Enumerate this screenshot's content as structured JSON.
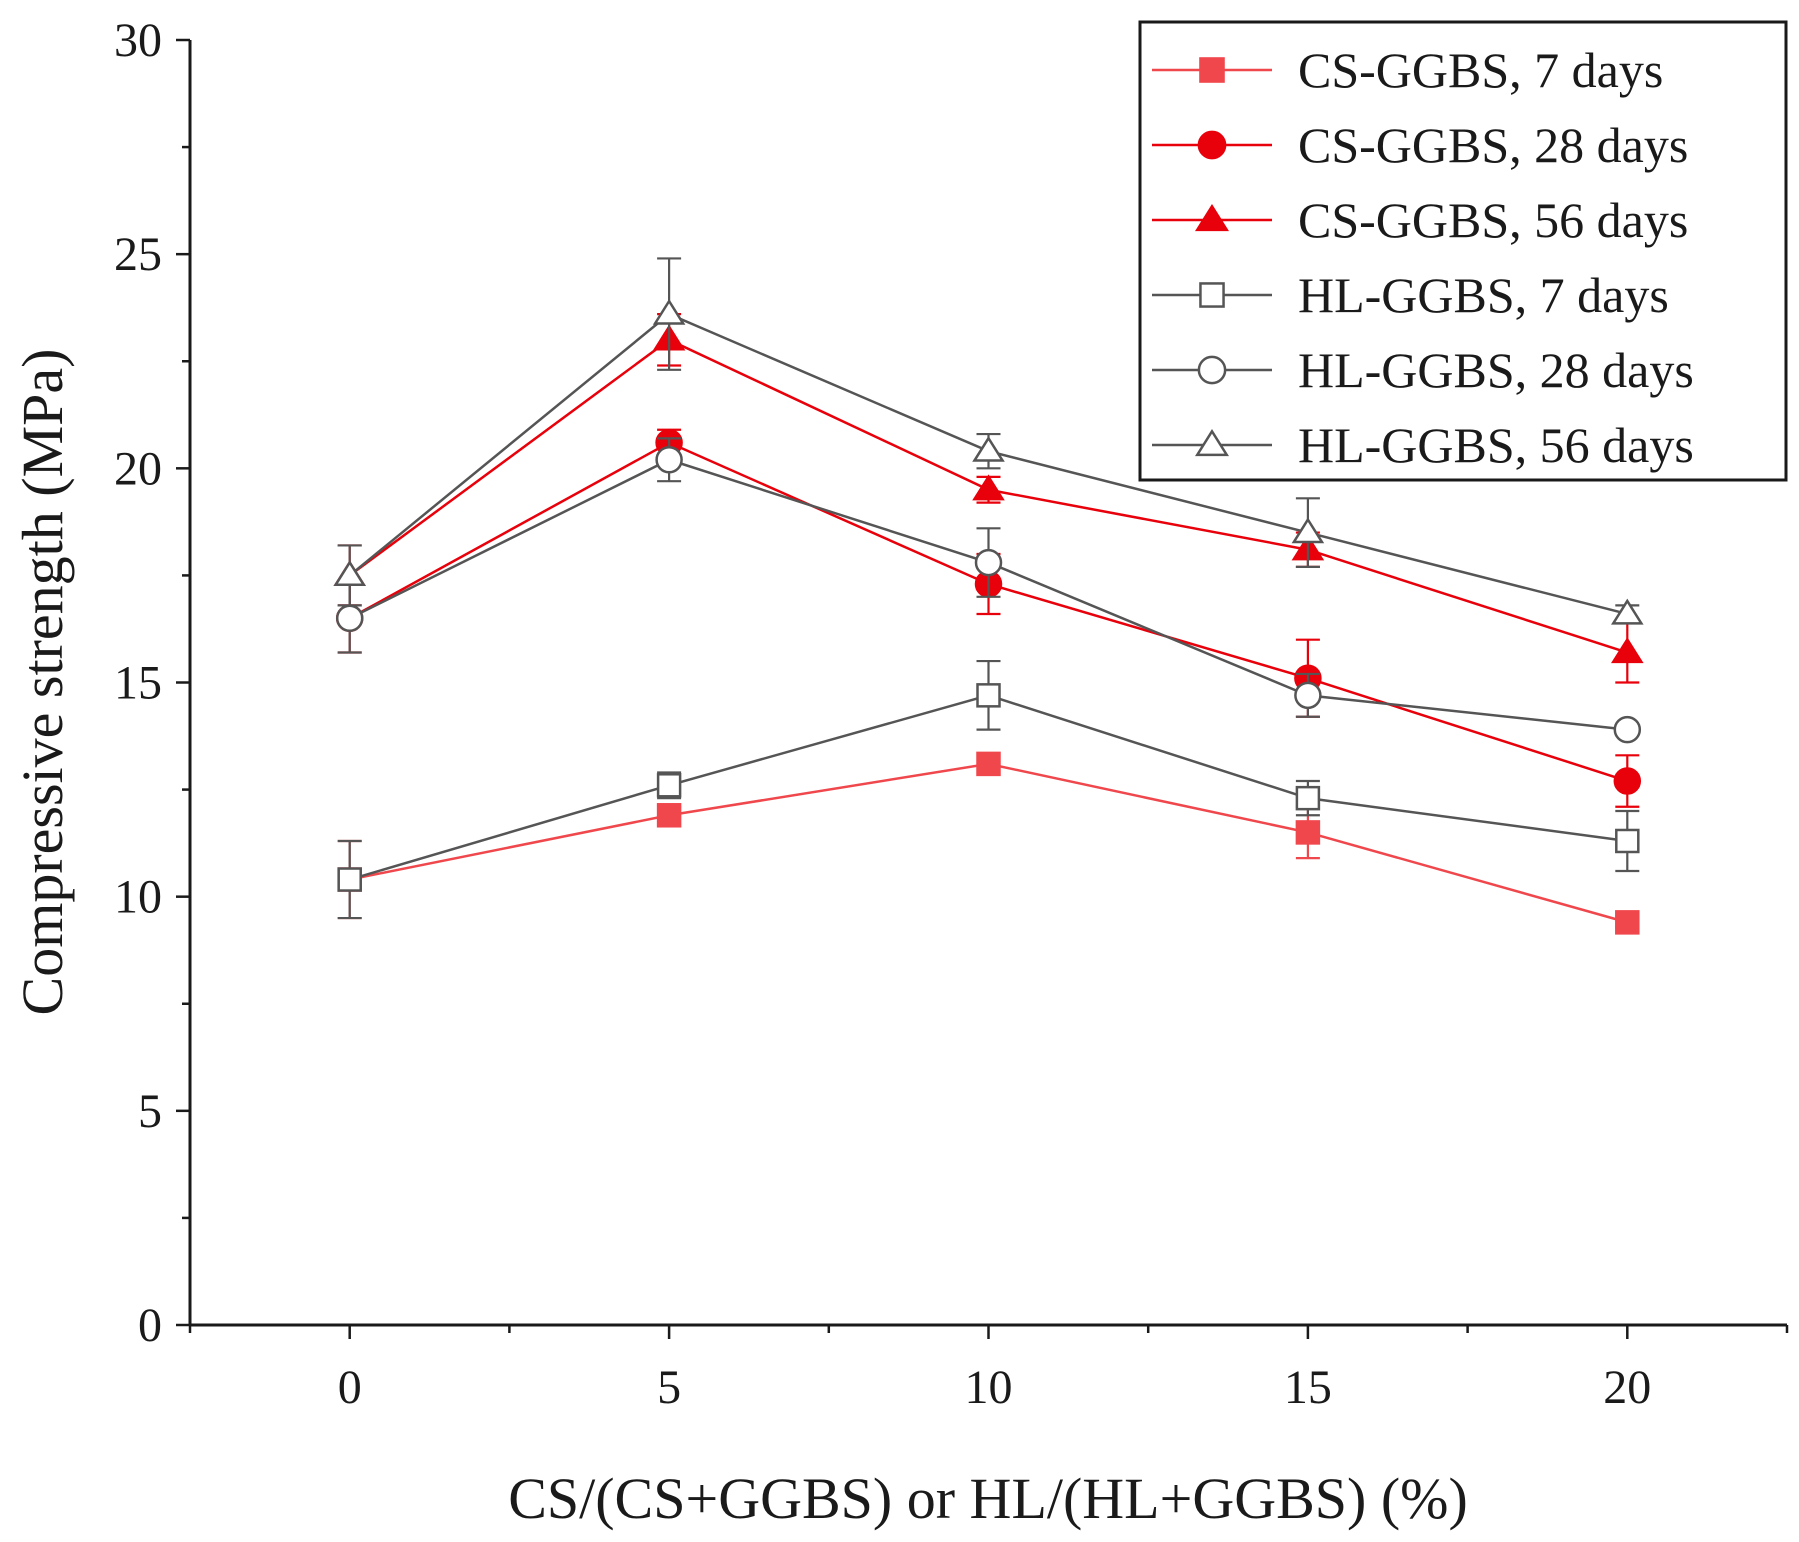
{
  "chart_data": {
    "type": "line",
    "title": "",
    "xlabel": "CS/(CS+GGBS) or HL/(HL+GGBS) (%)",
    "ylabel": "Compressive strength (MPa)",
    "xlim": [
      -2.5,
      22.5
    ],
    "ylim": [
      0,
      30
    ],
    "x": [
      0,
      5,
      10,
      15,
      20
    ],
    "xticks": [
      0,
      5,
      10,
      15,
      20
    ],
    "xtick_labels": [
      "0",
      "5",
      "10",
      "15",
      "20"
    ],
    "yticks": [
      0,
      5,
      10,
      15,
      20,
      25,
      30
    ],
    "ytick_labels": [
      "0",
      "5",
      "10",
      "15",
      "20",
      "25",
      "30"
    ],
    "grid": false,
    "legend_position": "top-right",
    "series": [
      {
        "name": "CS-GGBS, 7 days",
        "color": "#f0474c",
        "marker": "square",
        "filled": true,
        "values": [
          10.4,
          11.9,
          13.1,
          11.5,
          9.4
        ],
        "errors": [
          0.9,
          0.2,
          0.2,
          0.6,
          0.1
        ]
      },
      {
        "name": "CS-GGBS, 28 days",
        "color": "#e8000b",
        "marker": "circle",
        "filled": true,
        "values": [
          16.5,
          20.6,
          17.3,
          15.1,
          12.7
        ],
        "errors": [
          0.8,
          0.3,
          0.7,
          0.9,
          0.6
        ]
      },
      {
        "name": "CS-GGBS, 56 days",
        "color": "#e8000b",
        "marker": "triangle",
        "filled": true,
        "values": [
          17.5,
          23.0,
          19.5,
          18.1,
          15.7
        ],
        "errors": [
          0.7,
          0.6,
          0.3,
          0.4,
          0.7
        ]
      },
      {
        "name": "HL-GGBS, 7 days",
        "color": "#555555",
        "marker": "square",
        "filled": false,
        "values": [
          10.4,
          12.6,
          14.7,
          12.3,
          11.3
        ],
        "errors": [
          0.9,
          0.3,
          0.8,
          0.4,
          0.7
        ]
      },
      {
        "name": "HL-GGBS, 28 days",
        "color": "#555555",
        "marker": "circle",
        "filled": false,
        "values": [
          16.5,
          20.2,
          17.8,
          14.7,
          13.9
        ],
        "errors": [
          0.8,
          0.5,
          0.8,
          0.5,
          0.1
        ]
      },
      {
        "name": "HL-GGBS, 56 days",
        "color": "#555555",
        "marker": "triangle",
        "filled": false,
        "values": [
          17.5,
          23.6,
          20.4,
          18.5,
          16.6
        ],
        "errors": [
          0.7,
          1.3,
          0.4,
          0.8,
          0.2
        ]
      }
    ]
  }
}
